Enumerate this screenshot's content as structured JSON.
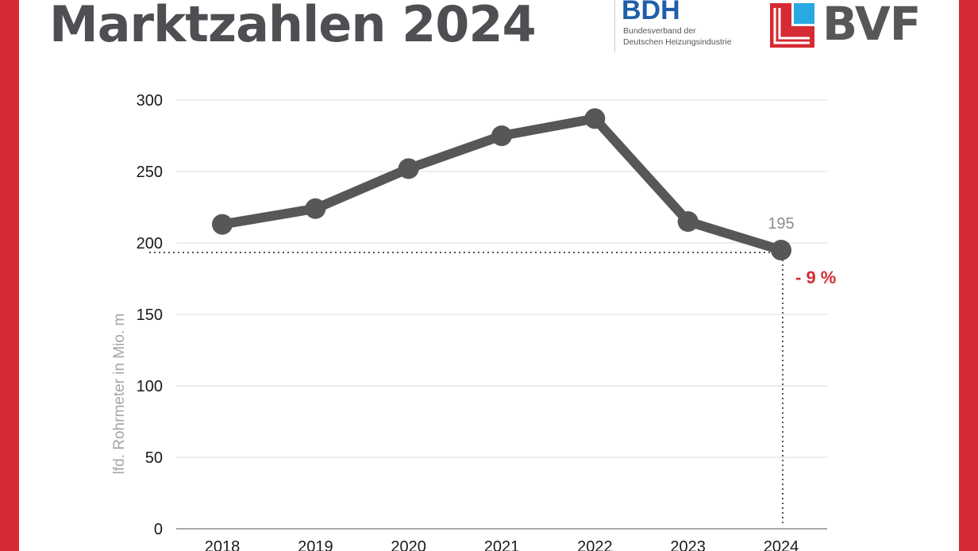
{
  "page": {
    "title": "Marktzahlen 2024",
    "frame_color": "#d62b34",
    "title_color": "#4d4f52"
  },
  "logos": {
    "bdh": {
      "mark": "BDH",
      "subtitle": "Bundesverband der\nDeutschen Heizungsindustrie",
      "color": "#1f5ea8"
    },
    "bvf": {
      "mark": "BVF",
      "text_color": "#555759",
      "icon_red": "#d62b34",
      "icon_blue": "#29a9e1"
    }
  },
  "chart_data": {
    "type": "line",
    "title": "",
    "xlabel": "",
    "ylabel": "lfd. Rohrmeter in Mio. m",
    "categories": [
      "2018",
      "2019",
      "2020",
      "2021",
      "2022",
      "2023",
      "2024"
    ],
    "series": [
      {
        "values": [
          213,
          224,
          252,
          275,
          287,
          215,
          195
        ]
      }
    ],
    "ylim": [
      0,
      300
    ],
    "yticks": [
      0,
      50,
      100,
      150,
      200,
      250,
      300
    ],
    "grid": true,
    "legend": "none",
    "line_color": "#555759",
    "annotations": [
      {
        "category": "2024",
        "value_label": "195",
        "change_label": "- 9 %",
        "change_color": "#d62b34"
      }
    ]
  }
}
